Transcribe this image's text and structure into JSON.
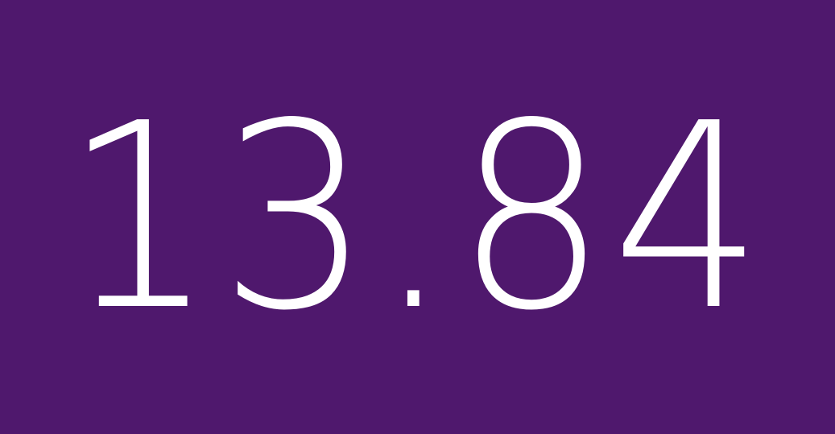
{
  "display": {
    "value": "13.84",
    "background_color": "#4f186d",
    "text_color": "#ffffff"
  }
}
